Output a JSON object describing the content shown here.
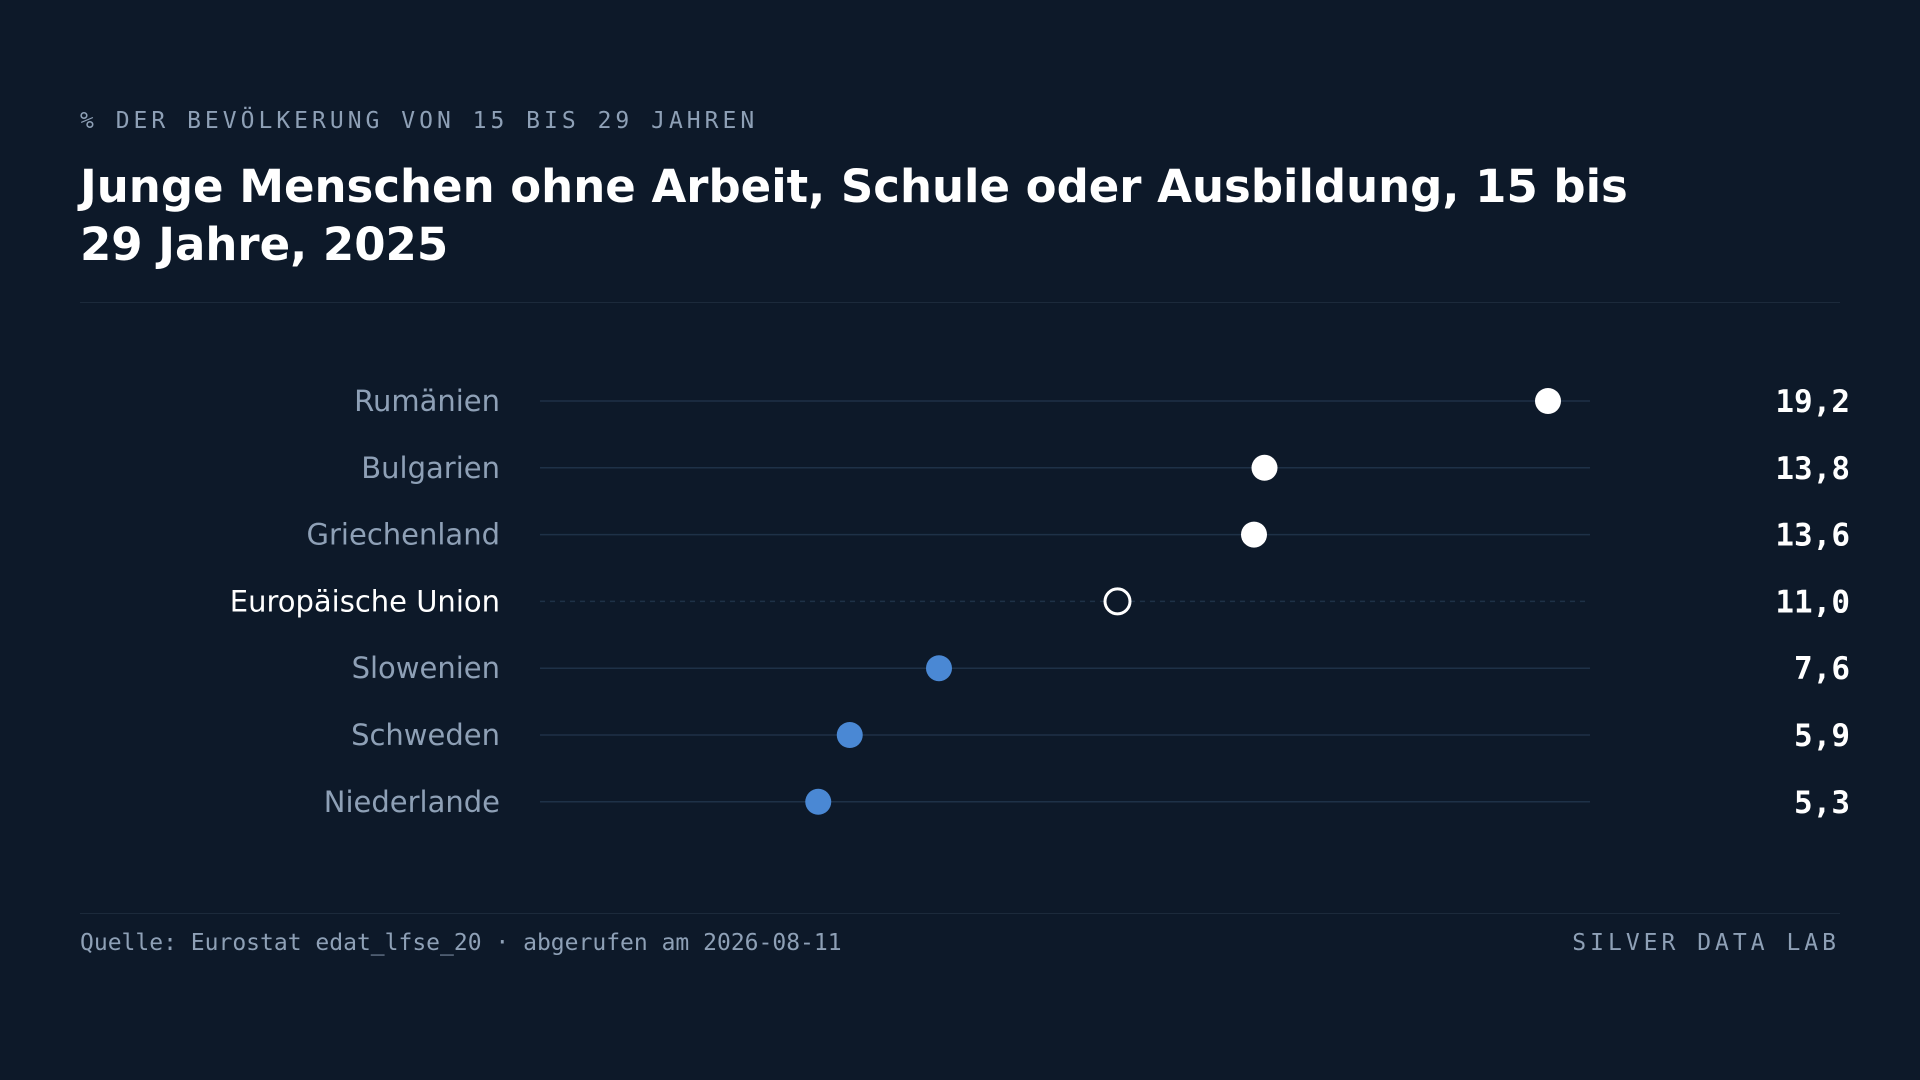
{
  "header": {
    "kicker": "% DER BEVÖLKERUNG VON 15 BIS 29 JAHREN",
    "title": "Junge Menschen ohne Arbeit, Schule oder Ausbildung, 15 bis 29 Jahre, 2025"
  },
  "footer": {
    "source": "Quelle: Eurostat edat_lfse_20 · abgerufen am 2026-08-11",
    "brand": "SILVER DATA LAB"
  },
  "colors": {
    "background": "#0d1929",
    "above_reference": "#ffffff",
    "below_reference": "#4a88d4",
    "reference": "#ffffff",
    "track": "#1e3147",
    "label": "#8ea0b6",
    "label_reference": "#ffffff",
    "value": "#ffffff"
  },
  "chart_data": {
    "type": "scatter",
    "subtype": "dot-plot",
    "title": "Junge Menschen ohne Arbeit, Schule oder Ausbildung, 15 bis 29 Jahre, 2025",
    "xlabel": "",
    "ylabel": "",
    "xlim": [
      0,
      20
    ],
    "grid": false,
    "reference_category": "Europäische Union",
    "categories": [
      "Rumänien",
      "Bulgarien",
      "Griechenland",
      "Europäische Union",
      "Slowenien",
      "Schweden",
      "Niederlande"
    ],
    "values": [
      19.2,
      13.8,
      13.6,
      11.0,
      7.6,
      5.9,
      5.3
    ],
    "value_labels": [
      "19,2",
      "13,8",
      "13,6",
      "11,0",
      "7,6",
      "5,9",
      "5,3"
    ]
  }
}
